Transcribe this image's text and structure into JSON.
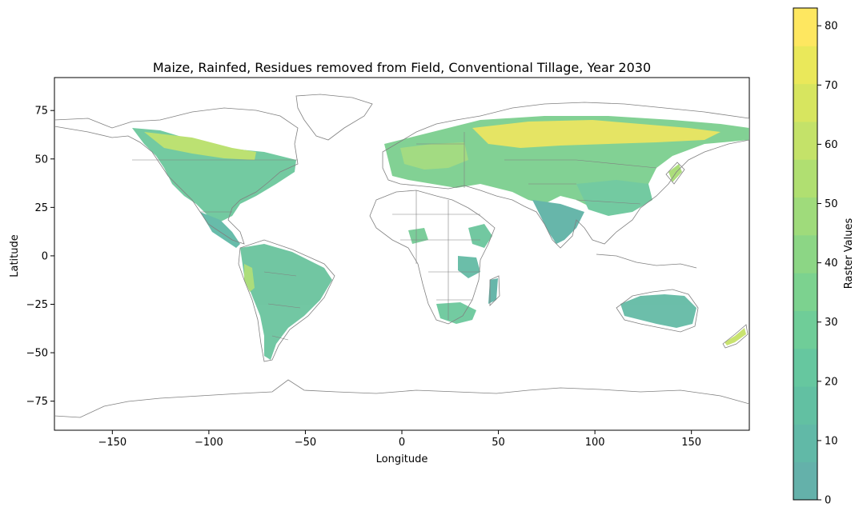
{
  "title": "Maize, Rainfed, Residues removed from Field, Conventional Tillage, Year 2030",
  "xlabel": "Longitude",
  "ylabel": "Latitude",
  "xlim": [
    -180,
    180
  ],
  "ylim": [
    -90,
    92
  ],
  "xticks": [
    -150,
    -100,
    -50,
    0,
    50,
    100,
    150
  ],
  "yticks": [
    -75,
    -50,
    -25,
    0,
    25,
    50,
    75
  ],
  "colorbar": {
    "label": "Raster Values",
    "range": [
      0,
      83
    ],
    "ticks": [
      0,
      10,
      20,
      30,
      40,
      50,
      60,
      70,
      80
    ],
    "colors": [
      "#64b1aa",
      "#61b9a7",
      "#62c0a2",
      "#66c79f",
      "#6fcd98",
      "#7cd28f",
      "#8cd685",
      "#9fdb7b",
      "#b0df71",
      "#c4e269",
      "#d7e55f",
      "#eae85a",
      "#fee760"
    ]
  },
  "colors": {
    "coastline": "#808080",
    "low": "#5fb3a6",
    "mid": "#8cd07f",
    "high": "#e6e35a"
  }
}
